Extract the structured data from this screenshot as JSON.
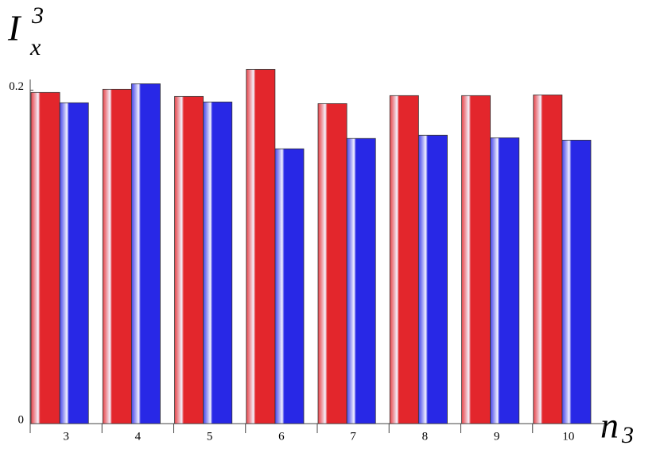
{
  "chart_data": {
    "type": "bar",
    "y_label": {
      "base": "I",
      "sub": "x",
      "sup": "3"
    },
    "x_label": {
      "base": "n",
      "sub": "3"
    },
    "categories": [
      "3",
      "4",
      "5",
      "6",
      "7",
      "8",
      "9",
      "10"
    ],
    "series": [
      {
        "color": "#e3262c",
        "values": [
          0.1986,
          0.2005,
          0.1962,
          0.2124,
          0.1919,
          0.1967,
          0.1967,
          0.1971
        ]
      },
      {
        "color": "#2828e6",
        "values": [
          0.1924,
          0.2038,
          0.1929,
          0.1648,
          0.171,
          0.1729,
          0.1714,
          0.17
        ]
      }
    ],
    "ylim": [
      0,
      0.204
    ],
    "yticks": [
      0,
      0.2
    ],
    "grid": false
  }
}
